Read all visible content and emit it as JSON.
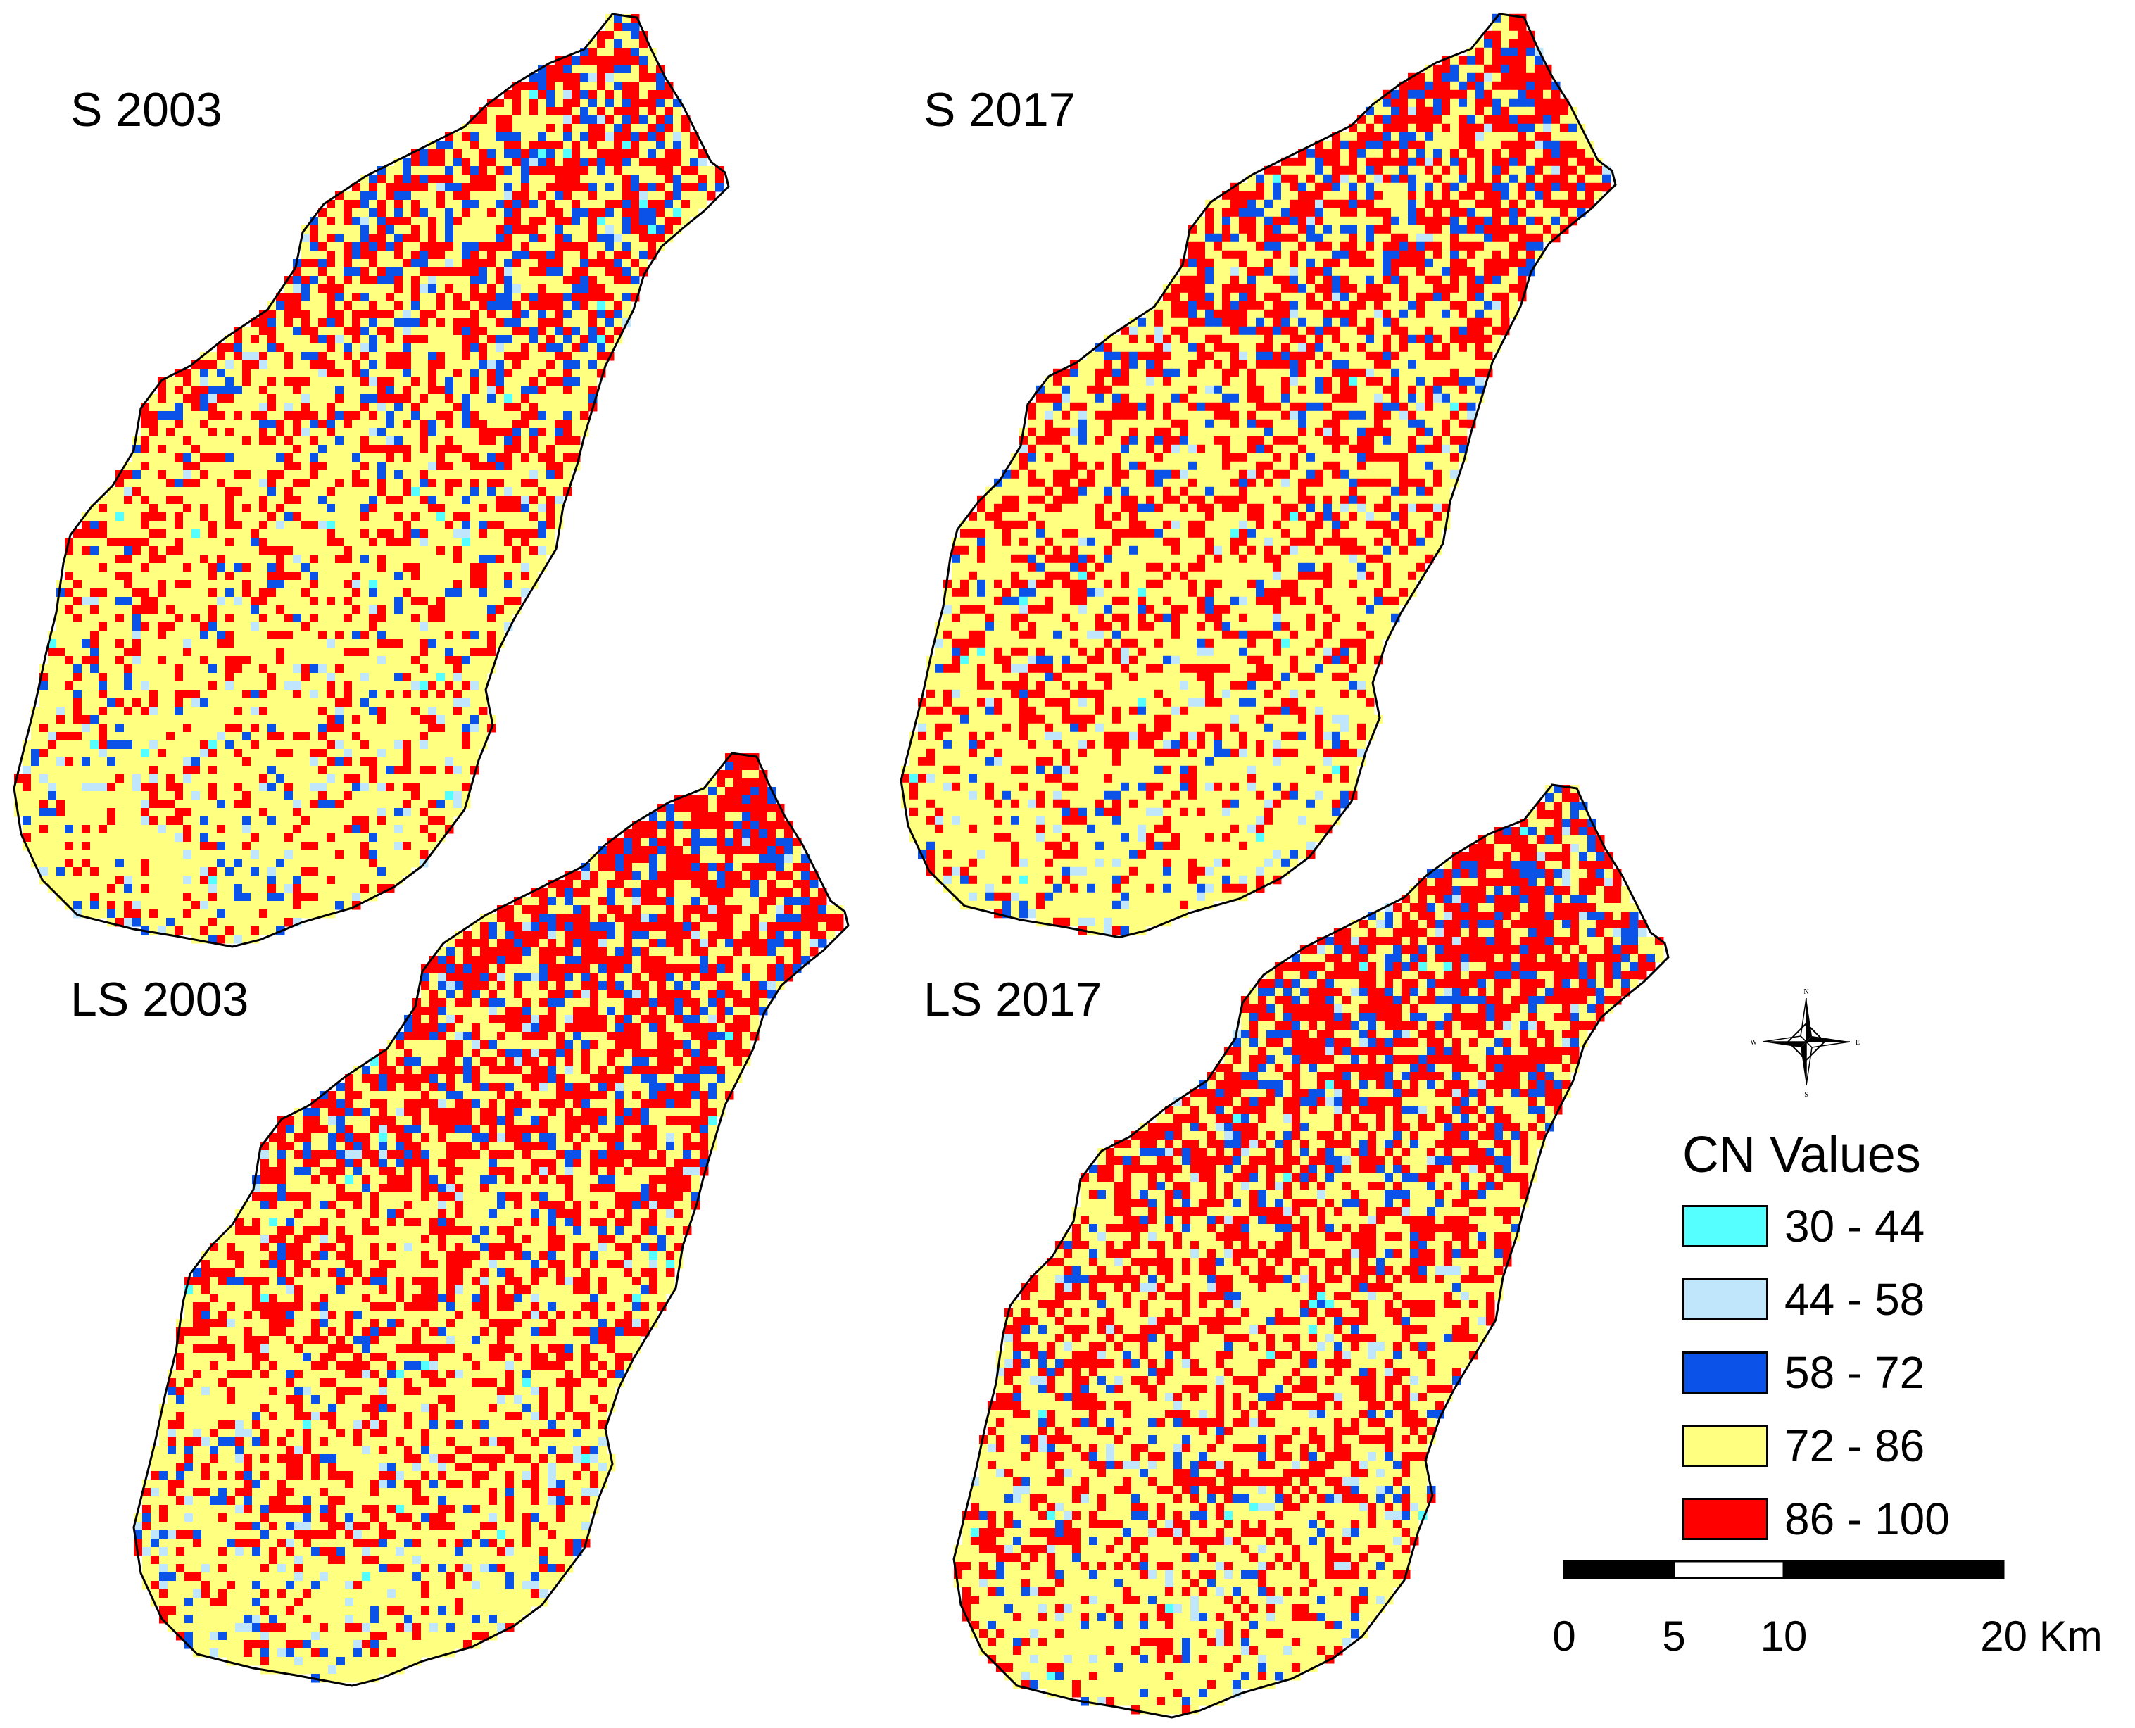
{
  "panels": [
    {
      "id": "s2003",
      "label": "S 2003",
      "red_bias": 0.0
    },
    {
      "id": "s2017",
      "label": "S 2017",
      "red_bias": 0.05
    },
    {
      "id": "ls2003",
      "label": "LS 2003",
      "red_bias": 0.12
    },
    {
      "id": "ls2017",
      "label": "LS 2017",
      "red_bias": 0.14
    }
  ],
  "legend": {
    "title": "CN Values",
    "items": [
      {
        "range": "30 - 44",
        "color": "#55ffff"
      },
      {
        "range": "44 - 58",
        "color": "#bfe6fb"
      },
      {
        "range": "58 - 72",
        "color": "#0a52e8"
      },
      {
        "range": "72 - 86",
        "color": "#ffff80"
      },
      {
        "range": "86 - 100",
        "color": "#ff0000"
      }
    ]
  },
  "scale_bar": {
    "ticks": [
      "0",
      "5",
      "10",
      "20 Km"
    ]
  },
  "north_arrow": {
    "letters": {
      "n": "N",
      "s": "S",
      "e": "E",
      "w": "W"
    }
  }
}
